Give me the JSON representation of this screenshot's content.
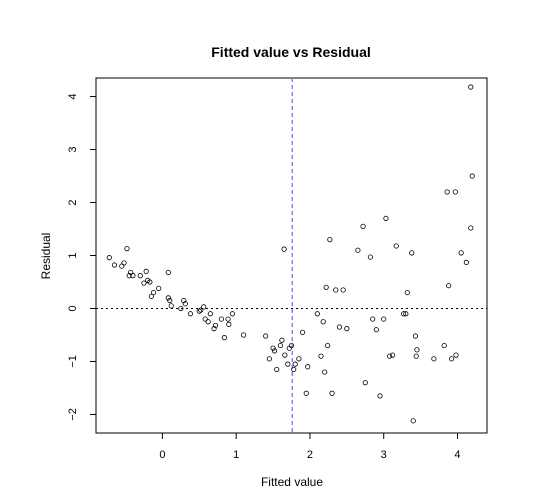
{
  "chart_data": {
    "type": "scatter",
    "title": "Fitted value vs Residual",
    "xlabel": "Fitted value",
    "ylabel": "Residual",
    "xlim": [
      -0.9,
      4.4
    ],
    "ylim": [
      -2.35,
      4.35
    ],
    "xticks": [
      0,
      1,
      2,
      3,
      4
    ],
    "yticks": [
      -2,
      -1,
      0,
      1,
      2,
      3,
      4
    ],
    "hline": {
      "y": 0,
      "style": "dotted",
      "color": "#000000"
    },
    "vline": {
      "x": 1.76,
      "style": "dashed",
      "color": "#7a7aff"
    },
    "marker": {
      "shape": "open-circle",
      "color": "#000000"
    },
    "points": [
      {
        "x": -0.72,
        "y": 0.96
      },
      {
        "x": -0.65,
        "y": 0.82
      },
      {
        "x": -0.55,
        "y": 0.8
      },
      {
        "x": -0.52,
        "y": 0.86
      },
      {
        "x": -0.48,
        "y": 1.13
      },
      {
        "x": -0.45,
        "y": 0.62
      },
      {
        "x": -0.43,
        "y": 0.68
      },
      {
        "x": -0.4,
        "y": 0.62
      },
      {
        "x": -0.3,
        "y": 0.62
      },
      {
        "x": -0.25,
        "y": 0.48
      },
      {
        "x": -0.22,
        "y": 0.7
      },
      {
        "x": -0.2,
        "y": 0.53
      },
      {
        "x": -0.17,
        "y": 0.5
      },
      {
        "x": -0.15,
        "y": 0.23
      },
      {
        "x": -0.12,
        "y": 0.3
      },
      {
        "x": -0.05,
        "y": 0.38
      },
      {
        "x": 0.08,
        "y": 0.68
      },
      {
        "x": 0.08,
        "y": 0.2
      },
      {
        "x": 0.1,
        "y": 0.15
      },
      {
        "x": 0.12,
        "y": 0.05
      },
      {
        "x": 0.25,
        "y": 0.0
      },
      {
        "x": 0.29,
        "y": 0.15
      },
      {
        "x": 0.31,
        "y": 0.09
      },
      {
        "x": 0.38,
        "y": -0.1
      },
      {
        "x": 0.5,
        "y": -0.05
      },
      {
        "x": 0.52,
        "y": -0.03
      },
      {
        "x": 0.56,
        "y": 0.03
      },
      {
        "x": 0.58,
        "y": -0.2
      },
      {
        "x": 0.62,
        "y": -0.25
      },
      {
        "x": 0.65,
        "y": -0.1
      },
      {
        "x": 0.7,
        "y": -0.38
      },
      {
        "x": 0.72,
        "y": -0.32
      },
      {
        "x": 0.8,
        "y": -0.2
      },
      {
        "x": 0.84,
        "y": -0.55
      },
      {
        "x": 0.89,
        "y": -0.2
      },
      {
        "x": 0.9,
        "y": -0.3
      },
      {
        "x": 0.95,
        "y": -0.1
      },
      {
        "x": 1.1,
        "y": -0.5
      },
      {
        "x": 1.4,
        "y": -0.52
      },
      {
        "x": 1.45,
        "y": -0.95
      },
      {
        "x": 1.5,
        "y": -0.75
      },
      {
        "x": 1.52,
        "y": -0.8
      },
      {
        "x": 1.55,
        "y": -1.15
      },
      {
        "x": 1.6,
        "y": -0.7
      },
      {
        "x": 1.62,
        "y": -0.6
      },
      {
        "x": 1.65,
        "y": 1.12
      },
      {
        "x": 1.66,
        "y": -0.88
      },
      {
        "x": 1.7,
        "y": -1.05
      },
      {
        "x": 1.72,
        "y": -0.75
      },
      {
        "x": 1.75,
        "y": -0.7
      },
      {
        "x": 1.78,
        "y": -1.15
      },
      {
        "x": 1.8,
        "y": -1.05
      },
      {
        "x": 1.85,
        "y": -0.95
      },
      {
        "x": 1.9,
        "y": -0.45
      },
      {
        "x": 1.95,
        "y": -1.6
      },
      {
        "x": 1.97,
        "y": -1.1
      },
      {
        "x": 2.1,
        "y": -0.1
      },
      {
        "x": 2.15,
        "y": -0.9
      },
      {
        "x": 2.18,
        "y": -0.25
      },
      {
        "x": 2.2,
        "y": -1.2
      },
      {
        "x": 2.22,
        "y": 0.4
      },
      {
        "x": 2.24,
        "y": -0.7
      },
      {
        "x": 2.27,
        "y": 1.3
      },
      {
        "x": 2.3,
        "y": -1.6
      },
      {
        "x": 2.35,
        "y": 0.35
      },
      {
        "x": 2.4,
        "y": -0.35
      },
      {
        "x": 2.45,
        "y": 0.35
      },
      {
        "x": 2.5,
        "y": -0.38
      },
      {
        "x": 2.65,
        "y": 1.1
      },
      {
        "x": 2.72,
        "y": 1.55
      },
      {
        "x": 2.75,
        "y": -1.4
      },
      {
        "x": 2.82,
        "y": 0.97
      },
      {
        "x": 2.85,
        "y": -0.2
      },
      {
        "x": 2.9,
        "y": -0.4
      },
      {
        "x": 2.95,
        "y": -1.65
      },
      {
        "x": 3.0,
        "y": -0.2
      },
      {
        "x": 3.03,
        "y": 1.7
      },
      {
        "x": 3.08,
        "y": -0.9
      },
      {
        "x": 3.12,
        "y": -0.88
      },
      {
        "x": 3.17,
        "y": 1.18
      },
      {
        "x": 3.27,
        "y": -0.1
      },
      {
        "x": 3.3,
        "y": -0.1
      },
      {
        "x": 3.32,
        "y": 0.3
      },
      {
        "x": 3.38,
        "y": 1.05
      },
      {
        "x": 3.4,
        "y": -2.12
      },
      {
        "x": 3.43,
        "y": -0.52
      },
      {
        "x": 3.44,
        "y": -0.9
      },
      {
        "x": 3.45,
        "y": -0.78
      },
      {
        "x": 3.68,
        "y": -0.95
      },
      {
        "x": 3.82,
        "y": -0.7
      },
      {
        "x": 3.86,
        "y": 2.2
      },
      {
        "x": 3.88,
        "y": 0.43
      },
      {
        "x": 3.92,
        "y": -0.95
      },
      {
        "x": 3.97,
        "y": 2.2
      },
      {
        "x": 3.98,
        "y": -0.88
      },
      {
        "x": 4.05,
        "y": 1.05
      },
      {
        "x": 4.12,
        "y": 0.87
      },
      {
        "x": 4.18,
        "y": 1.52
      },
      {
        "x": 4.2,
        "y": 2.5
      },
      {
        "x": 4.18,
        "y": 4.18
      }
    ]
  }
}
